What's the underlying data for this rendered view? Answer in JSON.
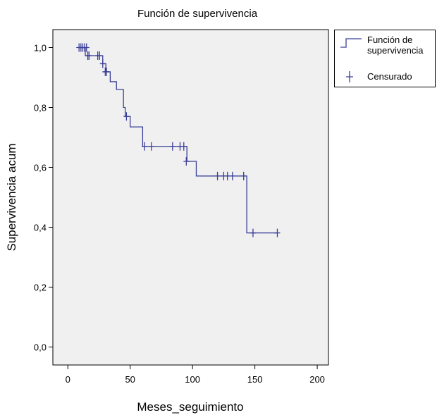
{
  "chart_data": {
    "type": "survival",
    "title": "Función de supervivencia",
    "x_label": "Meses_seguimiento",
    "y_label": "Supervivencia acum",
    "xlim": [
      -12,
      209
    ],
    "ylim": [
      -0.06,
      1.06
    ],
    "xticks": [
      0,
      50,
      100,
      150,
      200
    ],
    "yticks": [
      {
        "value": 0,
        "label": "0,0"
      },
      {
        "value": 0.2,
        "label": "0,2"
      },
      {
        "value": 0.4,
        "label": "0,4"
      },
      {
        "value": 0.6,
        "label": "0,6"
      },
      {
        "value": 0.8,
        "label": "0,8"
      },
      {
        "value": 1,
        "label": "1,0"
      }
    ],
    "background": "#f0f0f0",
    "series": [
      {
        "name": "Función de supervivencia",
        "color": "#3a3f96",
        "x": [
          9,
          14,
          28,
          30.5,
          34,
          39,
          44.6,
          46,
          50,
          60,
          95.5,
          103,
          143.5,
          168
        ],
        "values": [
          1,
          0.973,
          0.946,
          0.919,
          0.886,
          0.86,
          0.8,
          0.77,
          0.735,
          0.67,
          0.62,
          0.571,
          0.381,
          0.381
        ]
      },
      {
        "name": "Censurado",
        "color": "#3a3f96",
        "x": [
          9,
          10.5,
          12,
          13.5,
          15,
          16,
          17,
          24,
          25.5,
          28,
          30,
          31,
          47,
          61.5,
          67,
          84,
          90,
          93,
          95,
          120,
          125,
          128,
          132,
          141,
          148.5,
          168
        ],
        "values": [
          1,
          1,
          1,
          1,
          1,
          0.973,
          0.973,
          0.973,
          0.973,
          0.946,
          0.919,
          0.919,
          0.77,
          0.67,
          0.67,
          0.67,
          0.67,
          0.67,
          0.62,
          0.571,
          0.571,
          0.571,
          0.571,
          0.571,
          0.381,
          0.381
        ]
      }
    ]
  }
}
